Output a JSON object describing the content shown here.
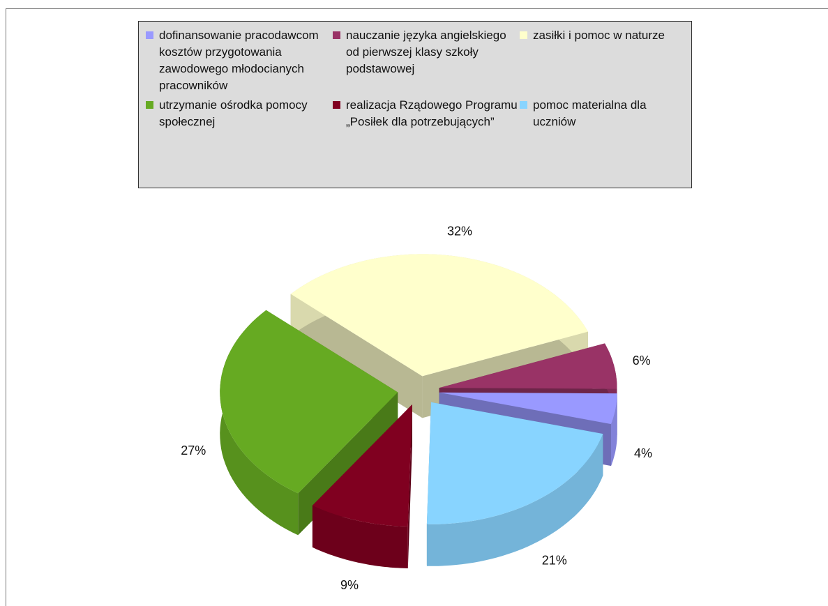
{
  "chart_data": {
    "type": "pie",
    "categories": [
      "dofinansowanie pracodawcom kosztów przygotowania zawodowego młodocianych pracowników",
      "nauczanie języka angielskiego od pierwszej klasy szkoły podstawowej",
      "zasiłki i pomoc w naturze",
      "utrzymanie ośrodka pomocy społecznej",
      "realizacja Rządowego Programu „Posiłek dla potrzebujących”",
      "pomoc materialna dla uczniów"
    ],
    "values": [
      4,
      6,
      32,
      27,
      9,
      21
    ],
    "value_labels": [
      "4%",
      "6%",
      "32%",
      "27%",
      "9%",
      "21%"
    ],
    "colors": [
      "#9999ff",
      "#993366",
      "#ffffcc",
      "#66aa22",
      "#800020",
      "#88d4ff"
    ],
    "legend": "top"
  }
}
